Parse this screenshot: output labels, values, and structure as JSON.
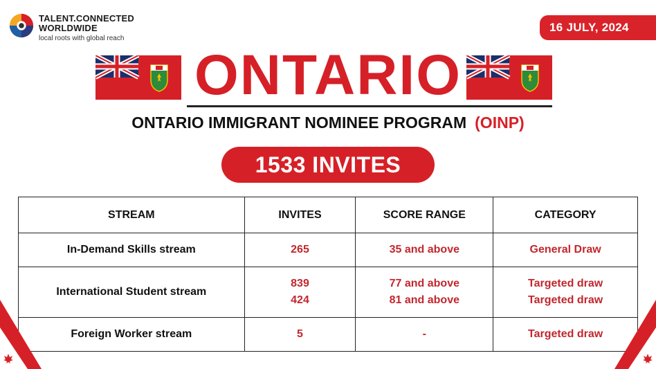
{
  "brand": {
    "line1": "TALENT.CONNECTED",
    "line2": "WORLDWIDE",
    "tagline": "local roots with global reach"
  },
  "date": "16 JULY, 2024",
  "title": "ONTARIO",
  "subtitle": {
    "text": "ONTARIO IMMIGRANT NOMINEE PROGRAM",
    "acronym": "(OINP)"
  },
  "invites_total": "1533 INVITES",
  "table": {
    "headers": [
      "STREAM",
      "INVITES",
      "SCORE RANGE",
      "CATEGORY"
    ],
    "rows": [
      {
        "stream": "In-Demand Skills stream",
        "invites": [
          "265"
        ],
        "score": [
          "35 and above"
        ],
        "category": [
          "General Draw"
        ]
      },
      {
        "stream": "International Student stream",
        "invites": [
          "839",
          "424"
        ],
        "score": [
          "77 and above",
          "81 and above"
        ],
        "category": [
          "Targeted draw",
          "Targeted draw"
        ]
      },
      {
        "stream": "Foreign Worker stream",
        "invites": [
          "5"
        ],
        "score": [
          "-"
        ],
        "category": [
          "Targeted draw"
        ]
      }
    ]
  },
  "colors": {
    "brand_red": "#d62027",
    "text_dark": "#111111",
    "table_value_red": "#c1272d"
  },
  "icons": [
    "talent-connected-logo-icon",
    "ontario-flag-icon",
    "maple-leaf-icon"
  ]
}
